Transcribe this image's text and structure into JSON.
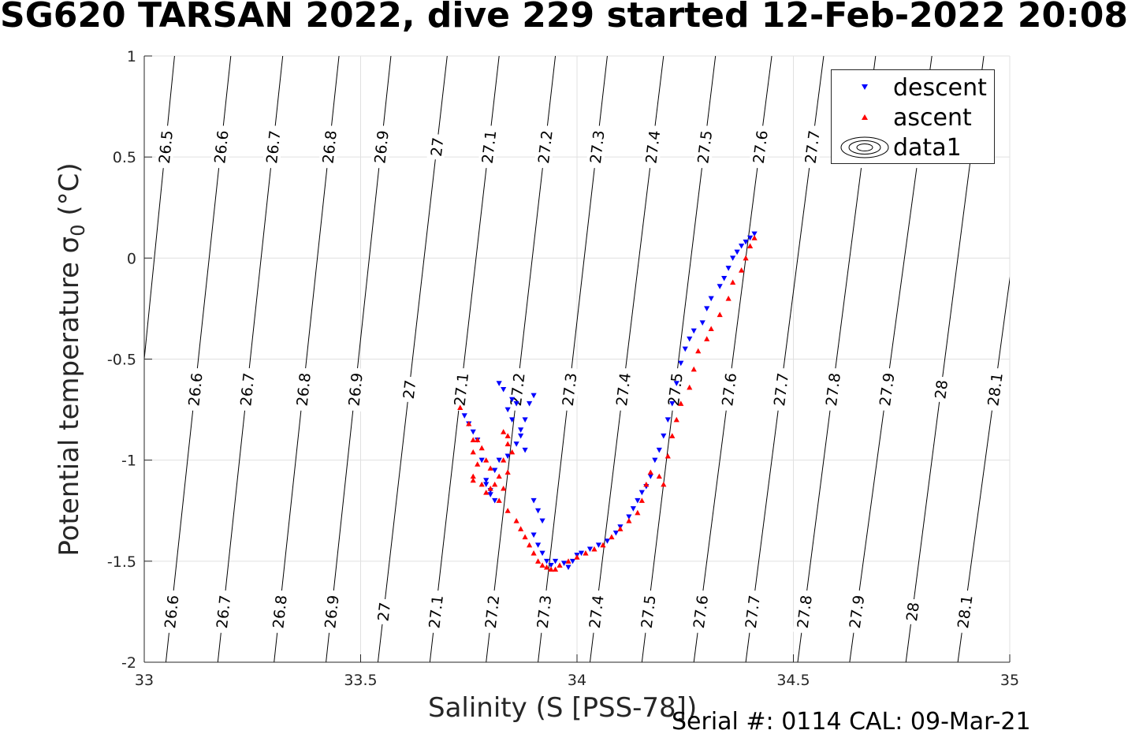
{
  "chart_data": {
    "type": "scatter",
    "title": "SG620 TARSAN 2022, dive 229 started 12-Feb-2022 20:08",
    "xlabel": "Salinity (S [PSS-78])",
    "ylabel_main": "Potential temperature",
    "ylabel_symbol": "σ",
    "ylabel_sub": "0",
    "ylabel_unit": "(°C)",
    "footer": "Serial #: 0114  CAL: 09-Mar-21",
    "xlim": [
      33,
      35
    ],
    "ylim": [
      -2,
      1
    ],
    "x_ticks": [
      "33",
      "33.5",
      "34",
      "34.5",
      "35"
    ],
    "y_ticks": [
      "-2",
      "-1.5",
      "-1",
      "-0.5",
      "0",
      "0.5",
      "1"
    ],
    "grid": true,
    "legend_position": "top-right",
    "legend": [
      "descent",
      "ascent",
      "data1"
    ],
    "colors": {
      "descent": "#0000ff",
      "ascent": "#ff0000",
      "contour": "#000000",
      "grid": "#e0e0e0"
    },
    "contours": {
      "levels": [
        "26.5",
        "26.6",
        "26.7",
        "26.8",
        "26.9",
        "27",
        "27.1",
        "27.2",
        "27.3",
        "27.4",
        "27.5",
        "27.6",
        "27.7",
        "27.8",
        "27.9",
        "28",
        "28.1"
      ],
      "salinity_at_minus2": [
        32.93,
        33.05,
        33.17,
        33.3,
        33.42,
        33.54,
        33.66,
        33.79,
        33.91,
        34.03,
        34.15,
        34.27,
        34.39,
        34.51,
        34.63,
        34.76,
        34.88
      ],
      "salinity_at_plus1": [
        33.07,
        33.2,
        33.32,
        33.45,
        33.57,
        33.7,
        33.82,
        33.95,
        34.07,
        34.2,
        34.32,
        34.45,
        34.57,
        34.69,
        34.82,
        34.94,
        35.07
      ]
    },
    "series": [
      {
        "name": "descent",
        "marker": "triangle-down",
        "x": [
          33.74,
          33.75,
          33.76,
          33.77,
          33.78,
          33.79,
          33.8,
          33.81,
          33.8,
          33.79,
          33.81,
          33.82,
          33.84,
          33.86,
          33.87,
          33.88,
          33.89,
          33.9,
          33.9,
          33.91,
          33.92,
          33.9,
          33.91,
          33.92,
          33.93,
          33.94,
          33.95,
          33.97,
          33.98,
          33.99,
          34.0,
          34.01,
          34.03,
          34.05,
          34.07,
          34.09,
          34.1,
          34.12,
          34.13,
          34.14,
          34.15,
          34.16,
          34.17,
          34.18,
          34.19,
          34.2,
          34.21,
          34.22,
          34.23,
          34.24,
          34.25,
          34.26,
          34.27,
          34.29,
          34.3,
          34.31,
          34.33,
          34.34,
          34.35,
          34.36,
          34.37,
          34.38,
          34.39,
          34.4,
          34.41,
          33.82,
          33.83,
          33.85,
          33.86,
          33.84,
          33.85,
          33.87,
          33.88
        ],
        "y": [
          -0.78,
          -0.82,
          -0.86,
          -0.9,
          -1.0,
          -1.1,
          -1.17,
          -1.2,
          -1.15,
          -1.12,
          -1.05,
          -1.0,
          -0.98,
          -0.92,
          -0.85,
          -0.8,
          -0.72,
          -0.68,
          -1.2,
          -1.25,
          -1.3,
          -1.37,
          -1.42,
          -1.46,
          -1.5,
          -1.52,
          -1.5,
          -1.51,
          -1.53,
          -1.5,
          -1.47,
          -1.46,
          -1.44,
          -1.42,
          -1.4,
          -1.36,
          -1.33,
          -1.28,
          -1.24,
          -1.2,
          -1.16,
          -1.13,
          -1.08,
          -1.0,
          -0.95,
          -0.88,
          -0.8,
          -0.72,
          -0.62,
          -0.52,
          -0.45,
          -0.4,
          -0.36,
          -0.32,
          -0.25,
          -0.2,
          -0.14,
          -0.1,
          -0.05,
          0.0,
          0.03,
          0.06,
          0.08,
          0.1,
          0.12,
          -0.62,
          -0.65,
          -0.7,
          -0.72,
          -0.75,
          -0.8,
          -0.88,
          -0.95
        ]
      },
      {
        "name": "ascent",
        "marker": "triangle-up",
        "x": [
          33.73,
          33.75,
          33.76,
          33.76,
          33.77,
          33.76,
          33.78,
          33.79,
          33.8,
          33.81,
          33.82,
          33.83,
          33.84,
          33.83,
          33.84,
          33.85,
          33.84,
          33.83,
          33.82,
          33.84,
          33.86,
          33.87,
          33.88,
          33.89,
          33.9,
          33.91,
          33.92,
          33.93,
          33.94,
          33.95,
          33.96,
          33.98,
          34.0,
          34.02,
          34.04,
          34.06,
          34.08,
          34.1,
          34.12,
          34.14,
          34.15,
          34.16,
          34.17,
          34.19,
          34.2,
          34.21,
          34.22,
          34.23,
          34.24,
          34.26,
          34.27,
          34.28,
          34.3,
          34.31,
          34.33,
          34.35,
          34.36,
          34.38,
          34.39,
          34.4,
          34.41,
          33.77,
          33.78,
          33.8,
          33.76,
          33.79
        ],
        "y": [
          -0.74,
          -0.82,
          -0.9,
          -0.96,
          -1.02,
          -1.08,
          -1.12,
          -1.16,
          -1.14,
          -1.12,
          -1.08,
          -1.0,
          -0.92,
          -0.86,
          -0.88,
          -0.96,
          -1.06,
          -1.14,
          -1.2,
          -1.25,
          -1.3,
          -1.34,
          -1.38,
          -1.42,
          -1.46,
          -1.5,
          -1.52,
          -1.53,
          -1.54,
          -1.54,
          -1.52,
          -1.5,
          -1.48,
          -1.46,
          -1.44,
          -1.42,
          -1.38,
          -1.34,
          -1.3,
          -1.26,
          -1.2,
          -1.12,
          -1.06,
          -1.08,
          -1.12,
          -0.98,
          -0.88,
          -0.8,
          -0.72,
          -0.64,
          -0.55,
          -0.46,
          -0.4,
          -0.35,
          -0.28,
          -0.2,
          -0.12,
          -0.06,
          0.0,
          0.06,
          0.1,
          -0.9,
          -0.94,
          -1.04,
          -1.1,
          -1.0
        ]
      }
    ]
  }
}
